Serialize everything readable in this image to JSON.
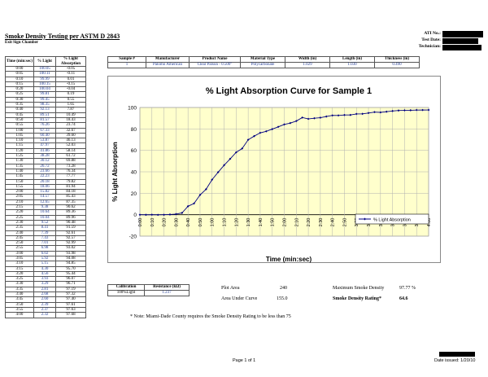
{
  "header": {
    "title": "Smoke Density Testing per ASTM D 2843",
    "subtitle": "Exit Sign Chamber",
    "ati_label": "ATI No.:",
    "test_date_label": "Test Date:",
    "technician_label": "Technician:"
  },
  "data_table": {
    "headers": [
      "Time (min:sec)",
      "% Light",
      "% Light Absorption"
    ],
    "rows": [
      [
        "0:00",
        "100.05",
        "-0.05"
      ],
      [
        "0:05",
        "100.11",
        "-0.11"
      ],
      [
        "0:10",
        "99.99",
        "0.01"
      ],
      [
        "0:15",
        "100.15",
        "-0.15"
      ],
      [
        "0:20",
        "100.04",
        "-0.04"
      ],
      [
        "0:25",
        "99.81",
        "0.19"
      ],
      [
        "0:30",
        "99.45",
        "0.55"
      ],
      [
        "0:35",
        "98.35",
        "1.65"
      ],
      [
        "0:40",
        "92.13",
        "7.87"
      ],
      [
        "0:45",
        "89.51",
        "10.49"
      ],
      [
        "0:50",
        "81.57",
        "18.43"
      ],
      [
        "0:55",
        "76.26",
        "23.74"
      ],
      [
        "1:00",
        "67.33",
        "32.67"
      ],
      [
        "1:05",
        "60.40",
        "39.60"
      ],
      [
        "1:10",
        "53.87",
        "46.13"
      ],
      [
        "1:15",
        "47.97",
        "52.03"
      ],
      [
        "1:20",
        "41.86",
        "58.14"
      ],
      [
        "1:25",
        "38.28",
        "61.72"
      ],
      [
        "1:30",
        "30.12",
        "69.88"
      ],
      [
        "1:35",
        "26.72",
        "73.28"
      ],
      [
        "1:40",
        "23.66",
        "76.34"
      ],
      [
        "1:45",
        "22.23",
        "77.77"
      ],
      [
        "1:50",
        "20.18",
        "79.82"
      ],
      [
        "1:55",
        "18.06",
        "81.94"
      ],
      [
        "2:00",
        "15.82",
        "84.18"
      ],
      [
        "2:05",
        "14.57",
        "85.43"
      ],
      [
        "2:10",
        "12.65",
        "87.35"
      ],
      [
        "2:15",
        "9.38",
        "90.62"
      ],
      [
        "2:20",
        "10.64",
        "89.36"
      ],
      [
        "2:25",
        "10.04",
        "89.96"
      ],
      [
        "2:30",
        "9.52",
        "90.48"
      ],
      [
        "2:35",
        "8.41",
        "91.59"
      ],
      [
        "2:40",
        "7.39",
        "92.61"
      ],
      [
        "2:45",
        "7.43",
        "92.57"
      ],
      [
        "2:50",
        "7.01",
        "92.99"
      ],
      [
        "2:55",
        "6.98",
        "93.02"
      ],
      [
        "3:00",
        "6.02",
        "93.98"
      ],
      [
        "3:05",
        "5.92",
        "94.08"
      ],
      [
        "3:10",
        "5.15",
        "94.85"
      ],
      [
        "3:15",
        "4.30",
        "95.70"
      ],
      [
        "3:20",
        "4.56",
        "95.44"
      ],
      [
        "3:25",
        "3.93",
        "96.07"
      ],
      [
        "3:30",
        "3.29",
        "96.71"
      ],
      [
        "3:35",
        "2.81",
        "97.19"
      ],
      [
        "3:40",
        "2.68",
        "97.32"
      ],
      [
        "3:45",
        "2.60",
        "97.40"
      ],
      [
        "3:50",
        "2.39",
        "97.61"
      ],
      [
        "3:55",
        "2.37",
        "97.63"
      ],
      [
        "4:00",
        "2.32",
        "97.68"
      ]
    ]
  },
  "sample_info": {
    "headers": [
      "Sample #",
      "Manufacturer",
      "Product Name",
      "Material Type",
      "Width (in)",
      "Length (in)",
      "Thickness (in)"
    ],
    "values": [
      "1",
      "Palomo American",
      "Clear Palsun - 0.500\"",
      "Polycarbonate",
      "1.029",
      "1.030",
      "0.490"
    ]
  },
  "chart_data": {
    "type": "line",
    "title": "% Light Absorption Curve for Sample 1",
    "xlabel": "Time (min:sec)",
    "ylabel": "% Light Absorption",
    "ylim": [
      -20,
      100
    ],
    "yticks": [
      -20,
      0,
      20,
      40,
      60,
      80,
      100
    ],
    "x": [
      "0:00",
      "0:05",
      "0:10",
      "0:15",
      "0:20",
      "0:25",
      "0:30",
      "0:35",
      "0:40",
      "0:45",
      "0:50",
      "0:55",
      "1:00",
      "1:05",
      "1:10",
      "1:15",
      "1:20",
      "1:25",
      "1:30",
      "1:35",
      "1:40",
      "1:45",
      "1:50",
      "1:55",
      "2:00",
      "2:05",
      "2:10",
      "2:15",
      "2:20",
      "2:25",
      "2:30",
      "2:35",
      "2:40",
      "2:45",
      "2:50",
      "2:55",
      "3:00",
      "3:05",
      "3:10",
      "3:15",
      "3:20",
      "3:25",
      "3:30",
      "3:35",
      "3:40",
      "3:45",
      "3:50",
      "3:55",
      "4:00"
    ],
    "xtick_labels": [
      "0:00",
      "0:10",
      "0:20",
      "0:30",
      "0:40",
      "0:50",
      "1:00",
      "1:10",
      "1:20",
      "1:30",
      "1:40",
      "1:50",
      "2:00",
      "2:10",
      "2:20",
      "2:30",
      "2:40",
      "2:50",
      "3:00",
      "3:10",
      "3:20",
      "3:30",
      "3:40",
      "3:50",
      "4:00"
    ],
    "series": [
      {
        "name": "% Light Absorption",
        "color": "#000080",
        "values": [
          -0.05,
          -0.11,
          0.01,
          -0.15,
          -0.04,
          0.19,
          0.55,
          1.65,
          7.87,
          10.49,
          18.43,
          23.74,
          32.67,
          39.6,
          46.13,
          52.03,
          58.14,
          61.72,
          69.88,
          73.28,
          76.34,
          77.77,
          79.82,
          81.94,
          84.18,
          85.43,
          87.35,
          90.62,
          89.36,
          89.96,
          90.48,
          91.59,
          92.61,
          92.57,
          92.99,
          93.02,
          93.98,
          94.08,
          94.85,
          95.7,
          95.44,
          96.07,
          96.71,
          97.19,
          97.32,
          97.4,
          97.61,
          97.63,
          97.68
        ]
      }
    ],
    "grid": true,
    "plot_background": "#ffffcc",
    "legend_position": "right"
  },
  "calibration": {
    "headers": [
      "Calibration",
      "Resistance (kΩ)"
    ],
    "label": "100%Light",
    "value": "1.237"
  },
  "summary": {
    "plot_area_label": "Plot Area",
    "plot_area_value": "240",
    "area_under_curve_label": "Area Under Curve",
    "area_under_curve_value": "155.0",
    "max_smoke_density_label": "Maximum Smoke Density",
    "max_smoke_density_value": "97.77 %",
    "smoke_density_rating_label": "Smoke Density Rating*",
    "smoke_density_rating_value": "64.6"
  },
  "note": "* Note:  Miami-Dade County requires the Smoke Density Rating to be less than 75",
  "footer": {
    "page": "Page 1 of 1",
    "date_issued": "Date issued: 1/20/10"
  }
}
